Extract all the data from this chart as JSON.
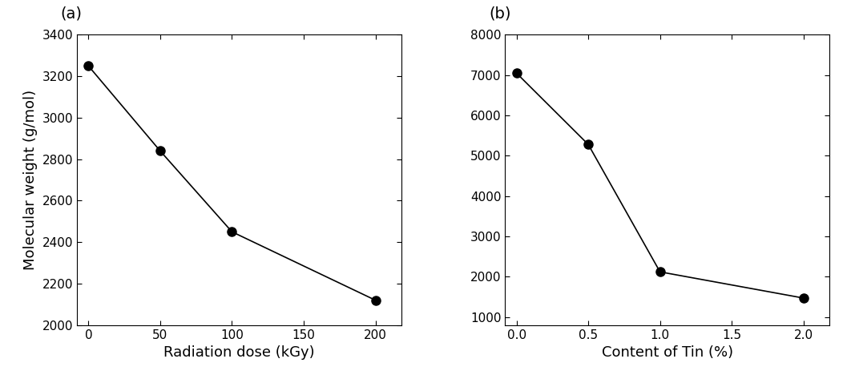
{
  "panel_a": {
    "x": [
      0,
      50,
      100,
      200
    ],
    "y": [
      3250,
      2840,
      2450,
      2120
    ],
    "xlabel": "Radiation dose (kGy)",
    "ylabel": "Molecular weight (g/mol)",
    "xlim": [
      -8,
      218
    ],
    "ylim": [
      2000,
      3400
    ],
    "xticks": [
      0,
      50,
      100,
      150,
      200
    ],
    "yticks": [
      2000,
      2200,
      2400,
      2600,
      2800,
      3000,
      3200,
      3400
    ],
    "label": "(a)"
  },
  "panel_b": {
    "x": [
      0.0,
      0.5,
      1.0,
      2.0
    ],
    "y": [
      7050,
      5280,
      2120,
      1470
    ],
    "xlabel": "Content of Tin (%)",
    "ylabel": "",
    "xlim": [
      -0.08,
      2.18
    ],
    "ylim": [
      800,
      8000
    ],
    "xticks": [
      0.0,
      0.5,
      1.0,
      1.5,
      2.0
    ],
    "yticks": [
      1000,
      2000,
      3000,
      4000,
      5000,
      6000,
      7000,
      8000
    ],
    "label": "(b)"
  },
  "line_color": "#000000",
  "marker": "o",
  "markersize": 8,
  "markerfacecolor": "#000000",
  "linewidth": 1.2,
  "font_family": "Arial",
  "label_fontsize": 13,
  "tick_fontsize": 11,
  "panel_label_fontsize": 14
}
